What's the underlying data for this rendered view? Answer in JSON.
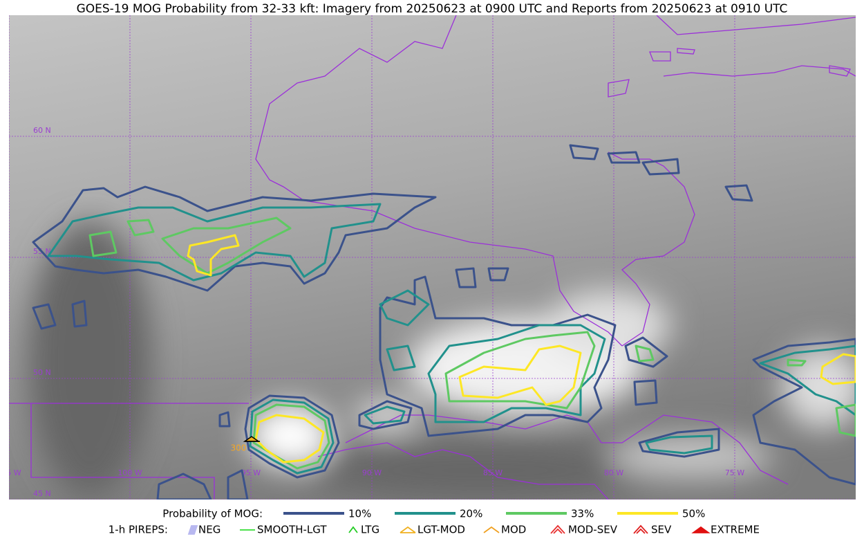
{
  "title": "GOES-19 MOG Probability from 32-33 kft: Imagery from 20250623 at 0900 UTC and Reports from 20250623 at 0910 UTC",
  "grid_labels": {
    "latitudes": [
      "60 N",
      "55 N",
      "50 N",
      "45 N"
    ],
    "longitudes": [
      "105 W",
      "100 W",
      "95 W",
      "90 W",
      "85 W",
      "80 W",
      "75 W"
    ]
  },
  "report": {
    "label": "300"
  },
  "legend": {
    "probability": {
      "title": "Probability of MOG:",
      "items": [
        {
          "label": "10%",
          "color": "#3b528b"
        },
        {
          "label": "20%",
          "color": "#21918c"
        },
        {
          "label": "33%",
          "color": "#5ec962"
        },
        {
          "label": "50%",
          "color": "#fde725"
        }
      ]
    },
    "pireps": {
      "title": "1-h PIREPS:",
      "items": [
        {
          "label": "NEG",
          "color": "#b8b8f0"
        },
        {
          "label": "SMOOTH-LGT",
          "color": "#33dd33"
        },
        {
          "label": "LTG",
          "color": "#22cc22"
        },
        {
          "label": "LGT-MOD",
          "color": "#f0b020"
        },
        {
          "label": "MOD",
          "color": "#f0a020"
        },
        {
          "label": "MOD-SEV",
          "color": "#e83030"
        },
        {
          "label": "SEV",
          "color": "#e02020"
        },
        {
          "label": "EXTREME",
          "color": "#e01010"
        }
      ]
    }
  }
}
